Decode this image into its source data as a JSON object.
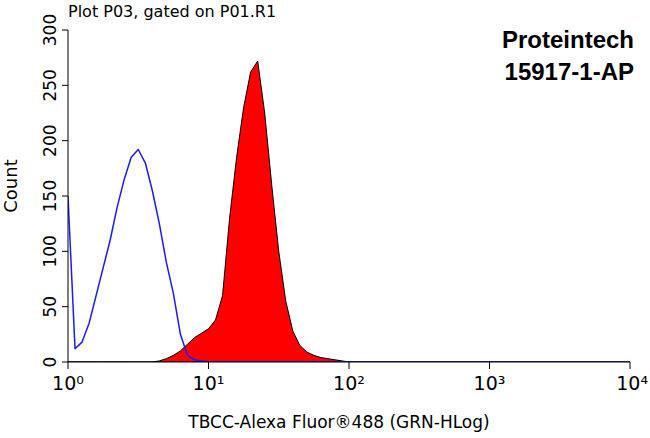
{
  "chart_data": {
    "type": "line",
    "title": "Plot P03, gated on P01.R1",
    "annotations": [
      "Proteintech",
      "15917-1-AP"
    ],
    "x_label": "TBCC-Alexa Fluor®488 (GRN-HLog)",
    "y_label": "Count",
    "log": "x",
    "grid": false,
    "xlim": [
      1,
      10000
    ],
    "ylim": [
      0,
      300
    ],
    "xticks": [
      {
        "value": 1,
        "label": "10⁰"
      },
      {
        "value": 10,
        "label": "10¹"
      },
      {
        "value": 100,
        "label": "10²"
      },
      {
        "value": 1000,
        "label": "10³"
      },
      {
        "value": 10000,
        "label": "10⁴"
      }
    ],
    "yticks": [
      0,
      50,
      100,
      150,
      200,
      250,
      300
    ],
    "x": [
      1,
      1.122,
      1.259,
      1.413,
      1.585,
      1.778,
      1.995,
      2.239,
      2.512,
      2.818,
      3.162,
      3.548,
      3.981,
      4.467,
      5.012,
      5.623,
      6.31,
      7.079,
      7.943,
      8.913,
      10,
      11.22,
      12.59,
      14.13,
      15.85,
      17.78,
      19.95,
      22.39,
      25.12,
      28.18,
      31.62,
      35.48,
      39.81,
      44.67,
      50.12,
      56.23,
      63.1,
      70.79,
      79.43,
      89.13,
      100,
      1000,
      10000
    ],
    "series": [
      {
        "type": "line",
        "color": "#1a1aff",
        "values": [
          150,
          12,
          18,
          35,
          60,
          85,
          110,
          140,
          165,
          185,
          192,
          180,
          155,
          125,
          90,
          62,
          25,
          6,
          2,
          1,
          0,
          0,
          0,
          0,
          0,
          0,
          0,
          0,
          0,
          0,
          0,
          0,
          0,
          0,
          0,
          0,
          0,
          0,
          0,
          0,
          0,
          0,
          0
        ]
      },
      {
        "type": "area",
        "color": "#ff0000",
        "values": [
          0,
          0,
          0,
          0,
          0,
          0,
          0,
          0,
          0,
          0,
          0,
          0,
          0,
          1,
          3,
          6,
          10,
          16,
          22,
          26,
          30,
          38,
          60,
          130,
          185,
          230,
          262,
          272,
          225,
          160,
          100,
          55,
          28,
          15,
          9,
          6,
          4,
          3,
          2,
          1,
          0,
          0,
          0
        ]
      }
    ]
  }
}
